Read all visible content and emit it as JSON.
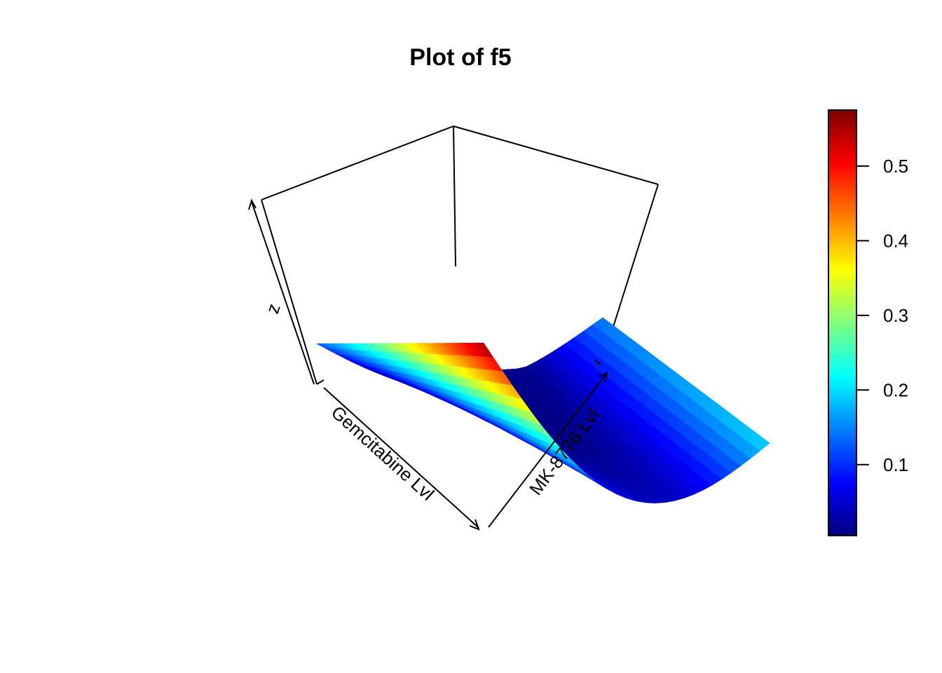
{
  "chart_data": {
    "type": "surface3d",
    "title": "Plot of f5",
    "xlabel": "Gemcitabine Lvl",
    "ylabel": "MK-8776 Lvl",
    "zlabel": "z",
    "colorscale": "jet",
    "colorscale_stops": [
      "#00007F",
      "#0000FF",
      "#007FFF",
      "#00FFFF",
      "#7FFF7F",
      "#FFFF00",
      "#FF7F00",
      "#FF0000",
      "#7F0000"
    ],
    "colorbar": {
      "range": [
        0.005,
        0.575
      ],
      "ticks": [
        0.1,
        0.2,
        0.3,
        0.4,
        0.5
      ],
      "tick_labels": [
        "0.1",
        "0.2",
        "0.3",
        "0.4",
        "0.5"
      ]
    },
    "z_range": [
      0.005,
      0.575
    ],
    "surface_corners": {
      "x0_y0": 0.13,
      "x1_y0": 0.57,
      "x1_y1": 0.2,
      "x0_y1": 0.15
    },
    "surface_minimum": 0.01
  }
}
